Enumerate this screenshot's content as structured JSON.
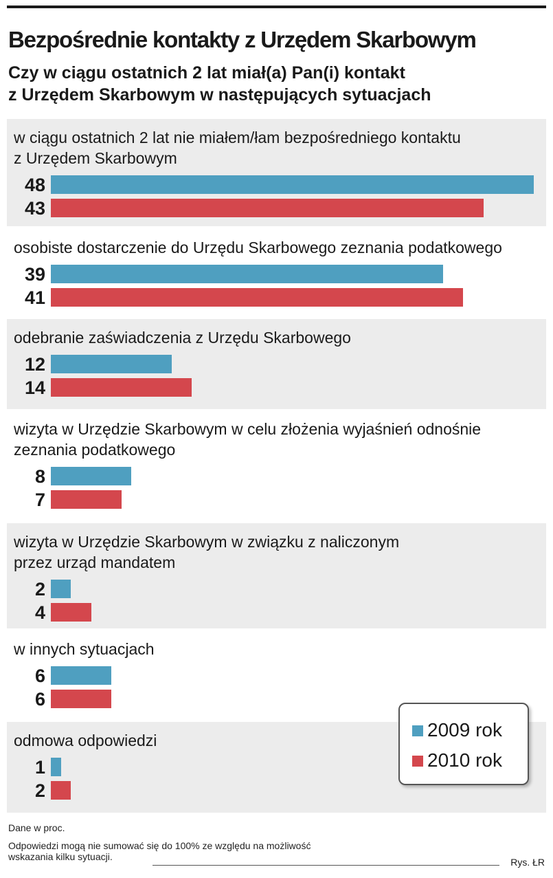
{
  "chart_data": {
    "type": "bar",
    "orientation": "horizontal",
    "title": "Bezpośrednie kontakty z Urzędem Skarbowym",
    "subtitle": [
      "Czy w ciągu ostatnich 2 lat miał(a) Pan(i) kontakt",
      "z Urzędem Skarbowym w następujących sytuacjach"
    ],
    "categories": [
      [
        "w ciągu ostatnich 2 lat nie miałem/łam bezpośredniego kontaktu",
        "z Urzędem Skarbowym"
      ],
      [
        "osobiste dostarczenie do Urzędu Skarbowego zeznania podatkowego"
      ],
      [
        "odebranie zaświadczenia z Urzędu Skarbowego"
      ],
      [
        "wizyta w Urzędzie Skarbowym w celu złożenia wyjaśnień odnośnie",
        "zeznania podatkowego"
      ],
      [
        "wizyta w Urzędzie Skarbowym w związku z naliczonym",
        "przez urząd mandatem"
      ],
      [
        "w innych sytuacjach"
      ],
      [
        "odmowa odpowiedzi"
      ]
    ],
    "series": [
      {
        "name": "2009 rok",
        "color": "#4f9fc0",
        "values": [
          48,
          39,
          12,
          8,
          2,
          6,
          1
        ]
      },
      {
        "name": "2010 rok",
        "color": "#d4474d",
        "values": [
          43,
          41,
          14,
          7,
          4,
          6,
          2
        ]
      }
    ],
    "xlim": [
      0,
      48
    ],
    "unit": "Dane w proc.",
    "legend_position": "bottom-right",
    "grid": false,
    "shaded_groups": [
      true,
      false,
      true,
      false,
      true,
      false,
      true
    ]
  },
  "notes": {
    "unit": "Dane w proc.",
    "footnote": [
      "Odpowiedzi mogą nie sumować się do 100% ze względu na możliwość",
      "wskazania kilku sytuacji."
    ],
    "credit": "Rys. ŁR"
  },
  "colors": {
    "series_2009": "#4f9fc0",
    "series_2010": "#d4474d",
    "shade": "#ececec"
  }
}
